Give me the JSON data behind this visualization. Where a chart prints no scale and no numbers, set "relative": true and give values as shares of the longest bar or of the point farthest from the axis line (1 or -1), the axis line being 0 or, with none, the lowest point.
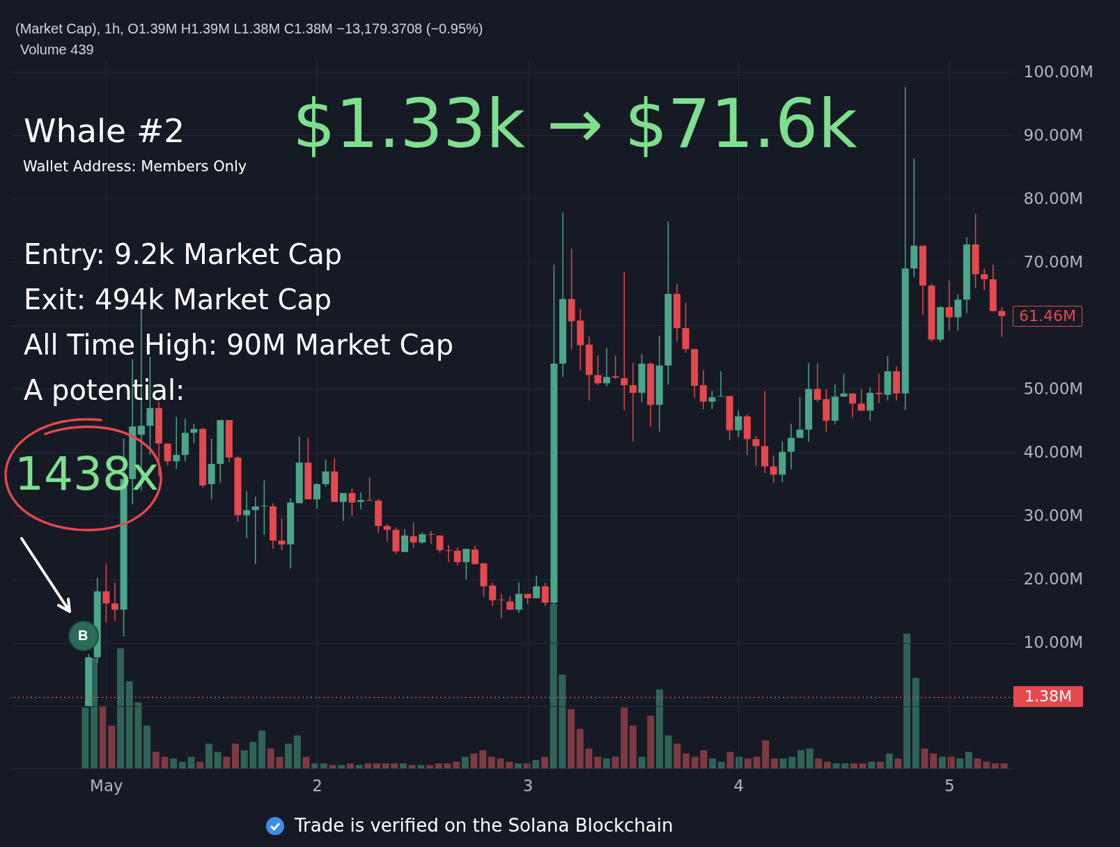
{
  "chart_data": [
    {
      "type": "candlestick",
      "title": "Whale #2",
      "subtitle": "Wallet Address: Members Only",
      "annotations": [
        "(Market Cap), 1h, O1.39M H1.39M L1.38M C1.38M −13,179.3708 (−0.95%)",
        "Volume 439",
        "$1.33k → $71.6k",
        "Entry: 9.2k Market Cap",
        "Exit: 494k Market Cap",
        "All Time High: 90M Market Cap",
        "A potential:",
        "1438x",
        "B",
        "Trade is verified on the Solana Blockchain",
        "61.46M"
      ],
      "x": [
        "--04-30T22:00",
        "--04-30T23:00",
        "--05-01T00:00",
        "--05-01T01:00",
        "--05-01T02:00",
        "--05-01T03:00",
        "--05-01T04:00",
        "--05-01T05:00",
        "--05-01T06:00",
        "--05-01T07:00",
        "--05-01T08:00",
        "--05-01T09:00",
        "--05-01T10:00",
        "--05-01T11:00",
        "--05-01T12:00",
        "--05-01T13:00",
        "--05-01T14:00",
        "--05-01T15:00",
        "--05-01T16:00",
        "--05-01T17:00",
        "--05-01T18:00",
        "--05-01T19:00",
        "--05-01T20:00",
        "--05-01T21:00",
        "--05-01T22:00",
        "--05-01T23:00",
        "--05-02T00:00",
        "--05-02T01:00",
        "--05-02T02:00",
        "--05-02T03:00",
        "--05-02T04:00",
        "--05-02T05:00",
        "--05-02T06:00",
        "--05-02T07:00",
        "--05-02T08:00",
        "--05-02T09:00",
        "--05-02T10:00",
        "--05-02T11:00",
        "--05-02T12:00",
        "--05-02T13:00",
        "--05-02T14:00",
        "--05-02T15:00",
        "--05-02T16:00",
        "--05-02T17:00",
        "--05-02T18:00",
        "--05-02T19:00",
        "--05-02T20:00",
        "--05-02T21:00",
        "--05-02T22:00",
        "--05-02T23:00",
        "--05-03T00:00",
        "--05-03T01:00",
        "--05-03T02:00",
        "--05-03T03:00",
        "--05-03T04:00",
        "--05-03T05:00",
        "--05-03T06:00",
        "--05-03T07:00",
        "--05-03T08:00",
        "--05-03T09:00",
        "--05-03T10:00",
        "--05-03T11:00",
        "--05-03T12:00",
        "--05-03T13:00",
        "--05-03T14:00",
        "--05-03T15:00",
        "--05-03T16:00",
        "--05-03T17:00",
        "--05-03T18:00",
        "--05-03T19:00",
        "--05-03T20:00",
        "--05-03T21:00",
        "--05-03T22:00",
        "--05-03T23:00",
        "--05-04T00:00",
        "--05-04T01:00",
        "--05-04T02:00",
        "--05-04T03:00",
        "--05-04T04:00",
        "--05-04T05:00",
        "--05-04T06:00",
        "--05-04T07:00",
        "--05-04T08:00",
        "--05-04T09:00",
        "--05-04T10:00",
        "--05-04T11:00",
        "--05-04T12:00",
        "--05-04T13:00",
        "--05-04T14:00",
        "--05-04T15:00",
        "--05-04T16:00",
        "--05-04T17:00",
        "--05-04T18:00",
        "--05-04T19:00",
        "--05-04T20:00",
        "--05-04T21:00",
        "--05-04T22:00",
        "--05-04T23:00",
        "--05-05T00:00",
        "--05-05T01:00",
        "--05-05T02:00",
        "--05-05T03:00",
        "--05-05T04:00",
        "--05-05T05:00",
        "--05-05T06:00"
      ],
      "ohlc": [
        [
          0.01,
          8.2,
          0.01,
          7.7
        ],
        [
          7.7,
          20.3,
          6.8,
          18.1
        ],
        [
          18.1,
          22.5,
          13.2,
          16.2
        ],
        [
          16.2,
          19.5,
          13.4,
          15.2
        ],
        [
          15.2,
          42.2,
          11.0,
          35.8
        ],
        [
          35.8,
          54.7,
          31.8,
          44.1
        ],
        [
          42.8,
          62.7,
          34.0,
          44.2
        ],
        [
          44.2,
          55.1,
          39.6,
          47.0
        ],
        [
          47.0,
          48.0,
          36.2,
          41.4
        ],
        [
          41.4,
          41.4,
          38.0,
          38.6
        ],
        [
          38.6,
          45.6,
          37.4,
          39.6
        ],
        [
          39.6,
          45.3,
          38.6,
          43.1
        ],
        [
          43.1,
          44.5,
          41.5,
          43.7
        ],
        [
          43.7,
          43.9,
          34.4,
          34.8
        ],
        [
          35.0,
          42.2,
          32.6,
          38.2
        ],
        [
          38.2,
          45.1,
          35.2,
          45.1
        ],
        [
          45.1,
          45.1,
          38.4,
          39.2
        ],
        [
          39.2,
          39.4,
          29.1,
          30.1
        ],
        [
          30.1,
          33.9,
          26.5,
          30.9
        ],
        [
          30.9,
          33.0,
          22.4,
          31.5
        ],
        [
          31.5,
          35.6,
          27.0,
          31.6
        ],
        [
          31.5,
          32.0,
          24.8,
          26.1
        ],
        [
          26.1,
          29.6,
          24.6,
          25.5
        ],
        [
          25.5,
          32.8,
          21.7,
          32.1
        ],
        [
          32.0,
          42.5,
          32.0,
          38.4
        ],
        [
          38.4,
          42.3,
          32.6,
          32.6
        ],
        [
          32.6,
          35.2,
          31.1,
          35.0
        ],
        [
          35.0,
          38.9,
          34.6,
          37.0
        ],
        [
          37.0,
          39.1,
          32.2,
          32.2
        ],
        [
          32.2,
          33.6,
          29.2,
          33.6
        ],
        [
          33.6,
          34.3,
          30.0,
          32.1
        ],
        [
          32.2,
          33.7,
          31.0,
          32.5
        ],
        [
          32.5,
          36.1,
          32.4,
          32.4
        ],
        [
          32.4,
          32.7,
          27.3,
          28.4
        ],
        [
          28.4,
          28.7,
          25.9,
          27.8
        ],
        [
          27.8,
          28.2,
          24.0,
          24.4
        ],
        [
          24.3,
          27.9,
          24.3,
          26.9
        ],
        [
          26.8,
          29.0,
          24.9,
          25.8
        ],
        [
          25.8,
          27.4,
          25.6,
          27.1
        ],
        [
          27.1,
          27.6,
          25.6,
          27.0
        ],
        [
          26.9,
          26.9,
          24.2,
          24.6
        ],
        [
          24.6,
          25.4,
          22.7,
          24.5
        ],
        [
          24.5,
          25.0,
          22.2,
          22.7
        ],
        [
          22.7,
          24.8,
          20.0,
          24.8
        ],
        [
          24.7,
          25.3,
          22.3,
          22.4
        ],
        [
          22.5,
          22.6,
          17.2,
          18.9
        ],
        [
          19.0,
          19.5,
          15.8,
          16.7
        ],
        [
          16.8,
          17.7,
          13.9,
          16.7
        ],
        [
          16.5,
          17.3,
          15.2,
          15.2
        ],
        [
          15.2,
          19.5,
          14.7,
          17.7
        ],
        [
          17.7,
          17.7,
          16.1,
          17.0
        ],
        [
          17.0,
          20.6,
          17.0,
          18.9
        ],
        [
          18.9,
          19.5,
          15.8,
          16.3
        ],
        [
          16.3,
          69.6,
          16.0,
          54.0
        ],
        [
          54.0,
          77.8,
          51.9,
          64.2
        ],
        [
          64.2,
          72.1,
          56.2,
          60.7
        ],
        [
          60.8,
          62.6,
          53.0,
          56.9
        ],
        [
          57.0,
          58.3,
          48.2,
          52.2
        ],
        [
          52.2,
          55.3,
          50.6,
          50.9
        ],
        [
          50.9,
          56.5,
          50.4,
          51.9
        ],
        [
          52.0,
          55.3,
          51.6,
          51.8
        ],
        [
          51.7,
          68.4,
          46.7,
          50.6
        ],
        [
          50.6,
          54.1,
          41.8,
          49.4
        ],
        [
          49.4,
          55.5,
          47.9,
          54.0
        ],
        [
          54.0,
          54.2,
          44.1,
          47.5
        ],
        [
          47.5,
          58.4,
          43.3,
          53.7
        ],
        [
          53.7,
          76.4,
          50.7,
          65.0
        ],
        [
          65.0,
          66.6,
          57.5,
          59.6
        ],
        [
          59.6,
          63.6,
          55.7,
          56.3
        ],
        [
          56.3,
          56.3,
          48.6,
          50.5
        ],
        [
          50.6,
          53.0,
          46.8,
          48.0
        ],
        [
          48.0,
          49.7,
          46.8,
          48.7
        ],
        [
          48.8,
          52.8,
          48.8,
          48.9
        ],
        [
          48.9,
          48.9,
          41.9,
          43.5
        ],
        [
          43.5,
          46.6,
          42.4,
          45.7
        ],
        [
          45.7,
          46.0,
          39.6,
          42.1
        ],
        [
          42.1,
          42.6,
          37.9,
          41.0
        ],
        [
          41.0,
          49.7,
          36.7,
          37.8
        ],
        [
          37.8,
          39.5,
          35.2,
          36.5
        ],
        [
          36.5,
          41.8,
          35.3,
          40.1
        ],
        [
          40.1,
          44.5,
          37.3,
          42.3
        ],
        [
          42.3,
          48.7,
          42.3,
          43.6
        ],
        [
          43.6,
          54.1,
          41.7,
          50.0
        ],
        [
          50.0,
          54.1,
          48.0,
          48.3
        ],
        [
          48.4,
          50.0,
          43.3,
          45.0
        ],
        [
          45.0,
          50.7,
          44.4,
          48.8
        ],
        [
          48.8,
          52.4,
          48.8,
          49.3
        ],
        [
          49.3,
          49.3,
          45.5,
          47.7
        ],
        [
          47.7,
          50.0,
          46.6,
          46.6
        ],
        [
          46.6,
          50.3,
          45.0,
          49.4
        ],
        [
          49.4,
          52.4,
          47.8,
          49.2
        ],
        [
          49.1,
          55.2,
          48.2,
          52.8
        ],
        [
          52.8,
          53.6,
          48.2,
          49.3
        ],
        [
          49.3,
          97.6,
          46.7,
          69.0
        ],
        [
          69.0,
          86.3,
          67.6,
          72.6
        ],
        [
          72.6,
          72.6,
          61.7,
          66.3
        ],
        [
          66.3,
          66.6,
          57.5,
          57.8
        ],
        [
          57.8,
          63.1,
          57.4,
          62.9
        ],
        [
          62.9,
          67.1,
          59.2,
          61.3
        ],
        [
          61.3,
          64.9,
          59.2,
          64.1
        ],
        [
          64.1,
          73.9,
          62.0,
          72.8
        ],
        [
          72.8,
          77.6,
          65.9,
          68.1
        ],
        [
          68.1,
          69.0,
          65.6,
          67.3
        ],
        [
          67.3,
          69.6,
          62.2,
          62.3
        ],
        [
          62.3,
          62.9,
          58.2,
          61.5
        ]
      ],
      "colors": [
        "#4aa58a",
        "#4aa58a",
        "#e5484d",
        "#e5484d",
        "#4aa58a",
        "#4aa58a",
        "#4aa58a",
        "#4aa58a",
        "#e5484d",
        "#e5484d",
        "#4aa58a",
        "#4aa58a",
        "#4aa58a",
        "#e5484d",
        "#4aa58a",
        "#4aa58a",
        "#e5484d",
        "#e5484d",
        "#4aa58a",
        "#4aa58a",
        "#4aa58a",
        "#e5484d",
        "#e5484d",
        "#4aa58a",
        "#4aa58a",
        "#e5484d",
        "#4aa58a",
        "#4aa58a",
        "#e5484d",
        "#4aa58a",
        "#e5484d",
        "#4aa58a",
        "#e5484d",
        "#e5484d",
        "#e5484d",
        "#e5484d",
        "#4aa58a",
        "#e5484d",
        "#4aa58a",
        "#e5484d",
        "#e5484d",
        "#e5484d",
        "#e5484d",
        "#4aa58a",
        "#e5484d",
        "#e5484d",
        "#e5484d",
        "#e5484d",
        "#e5484d",
        "#4aa58a",
        "#e5484d",
        "#4aa58a",
        "#e5484d",
        "#4aa58a",
        "#4aa58a",
        "#e5484d",
        "#e5484d",
        "#e5484d",
        "#e5484d",
        "#4aa58a",
        "#e5484d",
        "#e5484d",
        "#e5484d",
        "#4aa58a",
        "#e5484d",
        "#4aa58a",
        "#4aa58a",
        "#e5484d",
        "#e5484d",
        "#e5484d",
        "#e5484d",
        "#4aa58a",
        "#4aa58a",
        "#e5484d",
        "#4aa58a",
        "#e5484d",
        "#e5484d",
        "#e5484d",
        "#e5484d",
        "#4aa58a",
        "#4aa58a",
        "#4aa58a",
        "#4aa58a",
        "#e5484d",
        "#e5484d",
        "#4aa58a",
        "#4aa58a",
        "#e5484d",
        "#e5484d",
        "#4aa58a",
        "#e5484d",
        "#4aa58a",
        "#e5484d",
        "#4aa58a",
        "#4aa58a",
        "#e5484d",
        "#e5484d",
        "#4aa58a",
        "#e5484d",
        "#4aa58a",
        "#4aa58a",
        "#e5484d",
        "#e5484d",
        "#e5484d",
        "#e5484d"
      ],
      "xlim": [
        "--04-30T13:30",
        "--05-05T07:00"
      ],
      "xticks": [
        {
          "value": "--05-01",
          "label": "May"
        },
        {
          "value": "--05-02",
          "label": "2"
        },
        {
          "value": "--05-03",
          "label": "3"
        },
        {
          "value": "--05-04",
          "label": "4"
        },
        {
          "value": "--05-05",
          "label": "5"
        }
      ],
      "ylim": [
        -9.8,
        102
      ],
      "yticks": [
        {
          "value": 0,
          "label": null
        },
        {
          "value": 10,
          "label": "10.00M"
        },
        {
          "value": 20,
          "label": "20.00M"
        },
        {
          "value": 30,
          "label": "30.00M"
        },
        {
          "value": 40,
          "label": "40.00M"
        },
        {
          "value": 50,
          "label": "50.00M"
        },
        {
          "value": 60,
          "label": null
        },
        {
          "value": 70,
          "label": "70.00M"
        },
        {
          "value": 80,
          "label": "80.00M"
        },
        {
          "value": 90,
          "label": "90.00M"
        },
        {
          "value": 100,
          "label": "100.00M"
        }
      ],
      "ref_lines": [
        {
          "axis": "y",
          "value": 1.38,
          "label": "1.38M",
          "color": "#e5484d",
          "line_style": "dotted"
        }
      ],
      "grid": true
    },
    {
      "type": "bar",
      "relative": true,
      "categories": [
        null,
        null,
        null,
        null,
        null,
        null,
        null,
        null,
        null,
        null,
        null,
        null,
        null,
        null,
        null,
        null,
        null,
        null,
        null,
        null,
        null,
        null,
        null,
        null,
        null,
        null,
        null,
        null,
        null,
        null,
        null,
        null,
        null,
        null,
        null,
        null,
        null,
        null,
        null,
        null,
        null,
        null,
        null,
        null,
        null,
        null,
        null,
        null,
        null,
        null,
        null,
        null,
        null,
        null,
        null,
        null,
        null,
        null,
        null,
        null,
        null,
        null,
        null,
        null,
        null,
        null,
        null,
        null,
        null,
        null,
        null,
        null,
        null,
        null,
        null,
        null,
        null,
        null,
        null,
        null,
        null,
        null,
        null,
        null,
        null,
        null,
        null,
        null,
        null,
        null,
        null,
        null,
        null,
        null,
        null,
        null,
        null,
        null,
        null,
        null,
        null,
        null,
        null,
        null,
        null
      ],
      "values": [
        0.37,
        0.67,
        0.38,
        0.26,
        0.73,
        0.53,
        0.4,
        0.26,
        0.1,
        0.07,
        0.06,
        0.04,
        0.07,
        0.04,
        0.15,
        0.1,
        0.07,
        0.15,
        0.11,
        0.16,
        0.23,
        0.12,
        0.07,
        0.15,
        0.2,
        0.07,
        0.03,
        0.03,
        0.02,
        0.02,
        0.03,
        0.02,
        0.03,
        0.03,
        0.03,
        0.03,
        0.03,
        0.02,
        0.02,
        0.02,
        0.03,
        0.03,
        0.04,
        0.07,
        0.09,
        0.11,
        0.07,
        0.06,
        0.04,
        0.03,
        0.03,
        0.05,
        0.07,
        1,
        0.57,
        0.36,
        0.24,
        0.12,
        0.07,
        0.06,
        0.07,
        0.37,
        0.26,
        0.07,
        0.32,
        0.48,
        0.2,
        0.15,
        0.09,
        0.07,
        0.11,
        0.06,
        0.04,
        0.1,
        0.07,
        0.06,
        0.07,
        0.17,
        0.06,
        0.06,
        0.07,
        0.11,
        0.12,
        0.06,
        0.04,
        0.03,
        0.03,
        0.03,
        0.03,
        0.04,
        0.04,
        0.09,
        0.06,
        0.82,
        0.55,
        0.12,
        0.09,
        0.07,
        0.07,
        0.06,
        0.1,
        0.06,
        0.04,
        0.03,
        0.03
      ],
      "colors": [
        "#2f6357",
        "#2f6357",
        "#7d3a41",
        "#7d3a41",
        "#2f6357",
        "#2f6357",
        "#2f6357",
        "#2f6357",
        "#7d3a41",
        "#7d3a41",
        "#2f6357",
        "#2f6357",
        "#2f6357",
        "#7d3a41",
        "#2f6357",
        "#2f6357",
        "#7d3a41",
        "#7d3a41",
        "#2f6357",
        "#2f6357",
        "#2f6357",
        "#7d3a41",
        "#7d3a41",
        "#2f6357",
        "#2f6357",
        "#7d3a41",
        "#2f6357",
        "#2f6357",
        "#7d3a41",
        "#2f6357",
        "#7d3a41",
        "#2f6357",
        "#7d3a41",
        "#7d3a41",
        "#7d3a41",
        "#7d3a41",
        "#2f6357",
        "#7d3a41",
        "#2f6357",
        "#7d3a41",
        "#7d3a41",
        "#7d3a41",
        "#7d3a41",
        "#2f6357",
        "#7d3a41",
        "#7d3a41",
        "#7d3a41",
        "#7d3a41",
        "#7d3a41",
        "#2f6357",
        "#7d3a41",
        "#2f6357",
        "#7d3a41",
        "#2f6357",
        "#2f6357",
        "#7d3a41",
        "#7d3a41",
        "#7d3a41",
        "#7d3a41",
        "#2f6357",
        "#7d3a41",
        "#7d3a41",
        "#7d3a41",
        "#2f6357",
        "#7d3a41",
        "#2f6357",
        "#2f6357",
        "#7d3a41",
        "#7d3a41",
        "#7d3a41",
        "#7d3a41",
        "#2f6357",
        "#2f6357",
        "#7d3a41",
        "#2f6357",
        "#7d3a41",
        "#7d3a41",
        "#7d3a41",
        "#7d3a41",
        "#2f6357",
        "#2f6357",
        "#2f6357",
        "#2f6357",
        "#7d3a41",
        "#7d3a41",
        "#2f6357",
        "#2f6357",
        "#7d3a41",
        "#7d3a41",
        "#2f6357",
        "#7d3a41",
        "#2f6357",
        "#7d3a41",
        "#2f6357",
        "#2f6357",
        "#7d3a41",
        "#7d3a41",
        "#2f6357",
        "#7d3a41",
        "#2f6357",
        "#2f6357",
        "#7d3a41",
        "#7d3a41",
        "#7d3a41",
        "#7d3a41"
      ]
    }
  ]
}
